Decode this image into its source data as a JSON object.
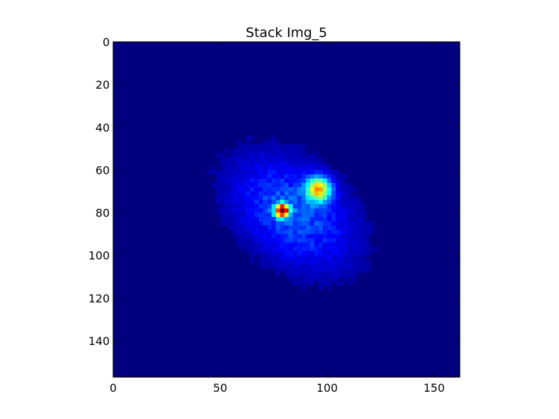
{
  "chart_data": {
    "type": "heatmap",
    "title": "Stack Img_5",
    "xlabel": "",
    "ylabel": "",
    "xlim": [
      0,
      162
    ],
    "ylim": [
      157,
      0
    ],
    "y_inverted": true,
    "x_ticks": [
      0,
      50,
      100,
      150
    ],
    "y_ticks": [
      0,
      20,
      40,
      60,
      80,
      100,
      120,
      140
    ],
    "grid": false,
    "colormap": "jet",
    "background_value": 0.0,
    "colormap_stops": [
      "#00007f",
      "#0000ff",
      "#007fff",
      "#00ffff",
      "#7fff7f",
      "#ffff00",
      "#ff7f00",
      "#ff0000",
      "#7f0000"
    ],
    "blob": {
      "center": [
        84,
        80
      ],
      "sigma_major": 30,
      "sigma_minor": 20,
      "angle_deg": -38,
      "peak": 0.3
    },
    "hot_spots": [
      {
        "x": 96,
        "y": 69,
        "value": 0.62,
        "radius": 4
      },
      {
        "x": 79,
        "y": 79,
        "value": 0.95,
        "radius": 2.2
      }
    ],
    "grid_pattern_period": 2
  }
}
